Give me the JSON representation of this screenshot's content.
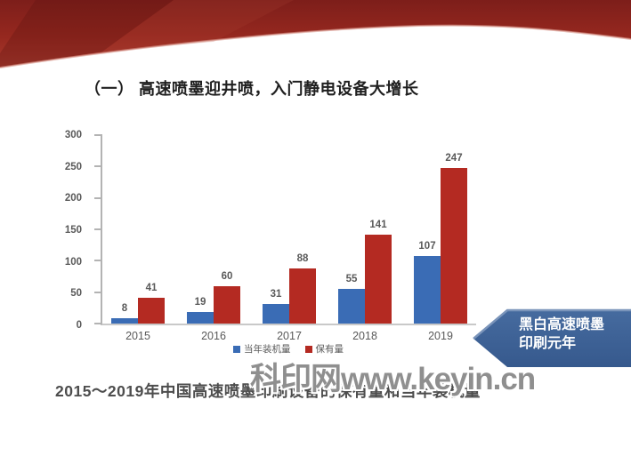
{
  "slide": {
    "title": "（一） 高速喷墨迎井喷，入门静电设备大增长",
    "caption": "2015～2019年中国高速喷墨印刷设备的保有量和当年装机量",
    "watermark": "科印网www.keyin.cn",
    "callout": {
      "line1": "黑白高速喷墨",
      "line2": "印刷元年",
      "fill_color": "#3b5f95",
      "highlight_color": "#7a94ba"
    },
    "banner": {
      "base_color": "#93261f",
      "dark_color": "#6f1b17",
      "edge_highlight_color": "#d8968c"
    }
  },
  "chart_data": {
    "type": "bar",
    "title": "",
    "xlabel": "",
    "ylabel": "",
    "categories": [
      "2015",
      "2016",
      "2017",
      "2018",
      "2019"
    ],
    "series": [
      {
        "name": "当年装机量",
        "color": "#3a6cb5",
        "values": [
          8,
          19,
          31,
          55,
          107
        ]
      },
      {
        "name": "保有量",
        "color": "#b42a22",
        "values": [
          41,
          60,
          88,
          141,
          247
        ]
      }
    ],
    "ylim": [
      0,
      300
    ],
    "ytick_step": 50,
    "grid": false,
    "legend_position": "bottom",
    "bar_value_labels": true
  }
}
